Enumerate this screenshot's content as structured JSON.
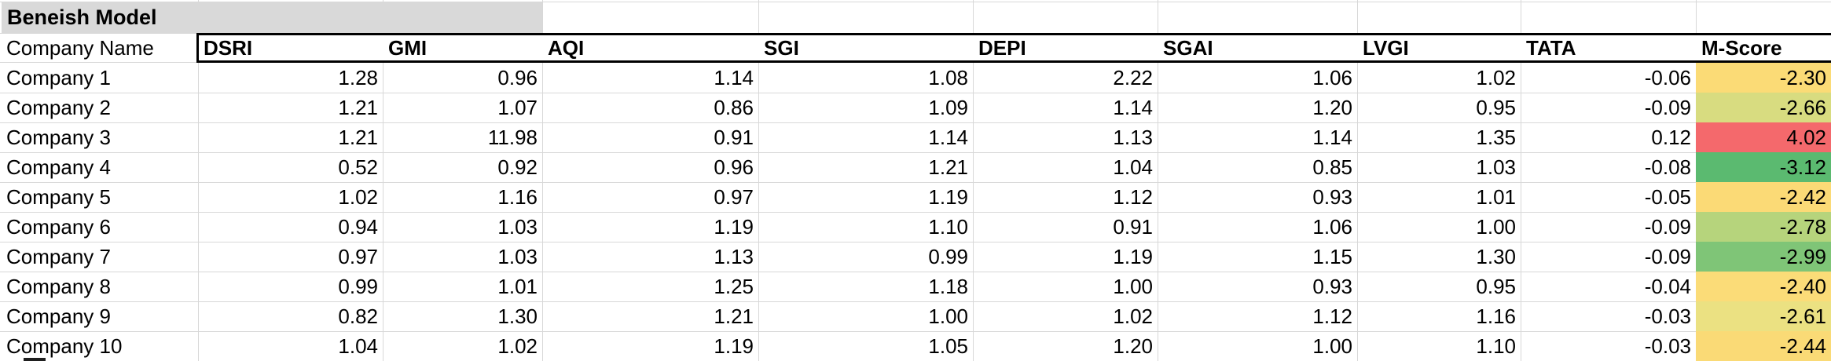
{
  "sheet_title": "Beneish Model",
  "table": {
    "company_column_header": "Company Name",
    "metric_headers": [
      "DSRI",
      "GMI",
      "AQI",
      "SGI",
      "DEPI",
      "SGAI",
      "LVGI",
      "TATA",
      "M-Score"
    ],
    "rows": [
      {
        "company": "Company 1",
        "values": [
          "1.28",
          "0.96",
          "1.14",
          "1.08",
          "2.22",
          "1.06",
          "1.02",
          "-0.06"
        ],
        "m_score": "-2.30",
        "m_score_color": "#FBDB76"
      },
      {
        "company": "Company 2",
        "values": [
          "1.21",
          "1.07",
          "0.86",
          "1.09",
          "1.14",
          "1.20",
          "0.95",
          "-0.09"
        ],
        "m_score": "-2.66",
        "m_score_color": "#D8DC80"
      },
      {
        "company": "Company 3",
        "values": [
          "1.21",
          "11.98",
          "0.91",
          "1.14",
          "1.13",
          "1.14",
          "1.35",
          "0.12"
        ],
        "m_score": "4.02",
        "m_score_color": "#F4696C"
      },
      {
        "company": "Company 4",
        "values": [
          "0.52",
          "0.92",
          "0.96",
          "1.21",
          "1.04",
          "0.85",
          "1.03",
          "-0.08"
        ],
        "m_score": "-3.12",
        "m_score_color": "#5BBA70"
      },
      {
        "company": "Company 5",
        "values": [
          "1.02",
          "1.16",
          "0.97",
          "1.19",
          "1.12",
          "0.93",
          "1.01",
          "-0.05"
        ],
        "m_score": "-2.42",
        "m_score_color": "#FBDA76"
      },
      {
        "company": "Company 6",
        "values": [
          "0.94",
          "1.03",
          "1.19",
          "1.10",
          "0.91",
          "1.06",
          "1.00",
          "-0.09"
        ],
        "m_score": "-2.78",
        "m_score_color": "#B6D47C"
      },
      {
        "company": "Company 7",
        "values": [
          "0.97",
          "1.03",
          "1.13",
          "0.99",
          "1.19",
          "1.15",
          "1.30",
          "-0.09"
        ],
        "m_score": "-2.99",
        "m_score_color": "#7FC577"
      },
      {
        "company": "Company 8",
        "values": [
          "0.99",
          "1.01",
          "1.25",
          "1.18",
          "1.00",
          "0.93",
          "0.95",
          "-0.04"
        ],
        "m_score": "-2.40",
        "m_score_color": "#FBDC78"
      },
      {
        "company": "Company 9",
        "values": [
          "0.82",
          "1.30",
          "1.21",
          "1.00",
          "1.02",
          "1.12",
          "1.16",
          "-0.03"
        ],
        "m_score": "-2.61",
        "m_score_color": "#EBE182"
      },
      {
        "company": "Company 10",
        "values": [
          "1.04",
          "1.02",
          "1.19",
          "1.05",
          "1.20",
          "1.00",
          "1.10",
          "-0.03"
        ],
        "m_score": "-2.44",
        "m_score_color": "#FADA76"
      }
    ]
  },
  "colors": {
    "title_fill": "#D9D9D9",
    "gridline": "#D8D8D8",
    "header_border": "#000000"
  }
}
